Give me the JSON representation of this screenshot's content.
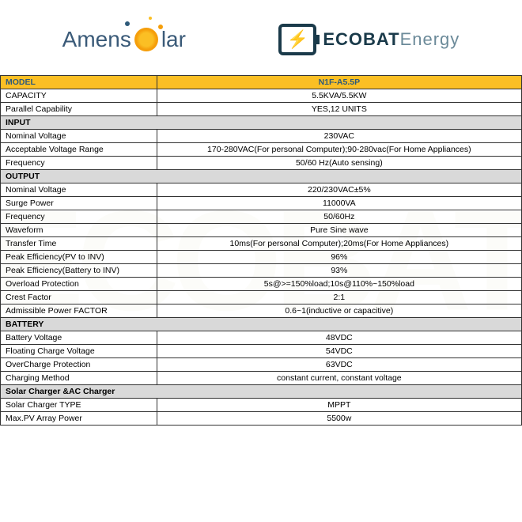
{
  "logos": {
    "left_part1": "Amens",
    "left_part2": "lar",
    "right_part1": "ECOBAT",
    "right_part2": "Energy"
  },
  "watermark": "ECOBAT",
  "colors": {
    "header_bg": "#fbbf24",
    "header_text": "#2e5a7a",
    "section_bg": "#d9d9d9",
    "border": "#333333"
  },
  "table": {
    "model_label": "MODEL",
    "model_value": "N1F-A5.5P",
    "rows_top": [
      {
        "label": "CAPACITY",
        "value": "5.5KVA/5.5KW"
      },
      {
        "label": "Parallel Capability",
        "value": "YES,12 UNITS"
      }
    ],
    "section_input": "INPUT",
    "rows_input": [
      {
        "label": "Nominal Voltage",
        "value": "230VAC"
      },
      {
        "label": "Acceptable Voltage Range",
        "value": "170-280VAC(For personal Computer);90-280vac(For Home Appliances)"
      },
      {
        "label": "Frequency",
        "value": "50/60 Hz(Auto sensing)"
      }
    ],
    "section_output": "OUTPUT",
    "rows_output": [
      {
        "label": "Nominal Voltage",
        "value": "220/230VAC±5%"
      },
      {
        "label": "Surge Power",
        "value": "11000VA"
      },
      {
        "label": "Frequency",
        "value": "50/60Hz"
      },
      {
        "label": "Waveform",
        "value": "Pure Sine wave"
      },
      {
        "label": "Transfer Time",
        "value": "10ms(For personal Computer);20ms(For Home Appliances)"
      },
      {
        "label": "Peak Efficiency(PV to INV)",
        "value": "96%"
      },
      {
        "label": "Peak Efficiency(Battery to INV)",
        "value": "93%"
      },
      {
        "label": "Overload Protection",
        "value": "5s@>=150%load;10s@110%~150%load"
      },
      {
        "label": "Crest Factor",
        "value": "2:1"
      },
      {
        "label": "Admissible Power FACTOR",
        "value": "0.6~1(inductive or capacitive)"
      }
    ],
    "section_battery": "BATTERY",
    "rows_battery": [
      {
        "label": "Battery Voltage",
        "value": "48VDC"
      },
      {
        "label": "Floating Charge Voltage",
        "value": "54VDC"
      },
      {
        "label": "OverCharge Protection",
        "value": "63VDC"
      },
      {
        "label": "Charging Method",
        "value": "constant current, constant voltage"
      }
    ],
    "section_solar": "Solar Charger &AC Charger",
    "rows_solar": [
      {
        "label": "Solar Charger TYPE",
        "value": "MPPT"
      },
      {
        "label": "Max.PV Array Power",
        "value": "5500w"
      }
    ]
  }
}
